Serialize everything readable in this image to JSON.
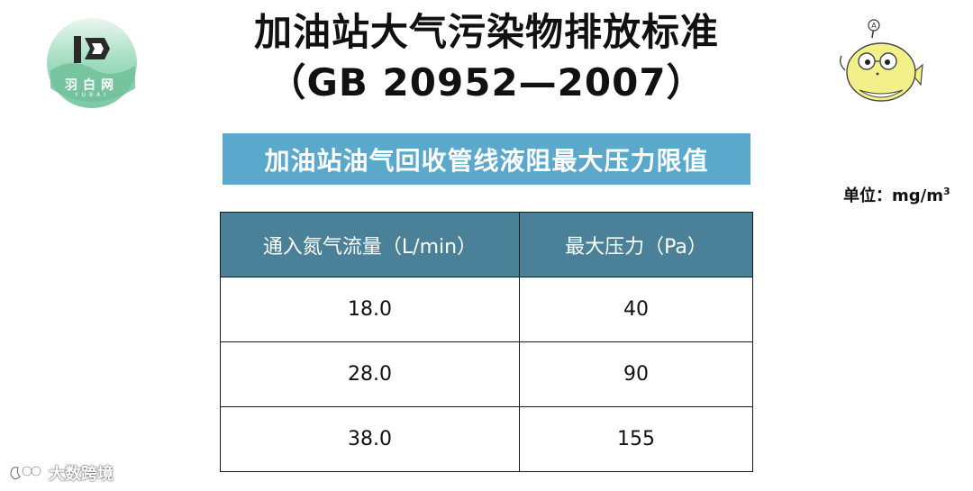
{
  "logo": {
    "text": "羽白网",
    "sub": "YUBAI"
  },
  "title": {
    "line1": "加油站大气污染物排放标准",
    "line2": "（GB 20952—2007）"
  },
  "subtitle": "加油站油气回收管线液阻最大压力限值",
  "unit": {
    "label": "单位：mg/m",
    "sup": "3"
  },
  "table": {
    "headers": [
      "通入氮气流量（L/min）",
      "最大压力（Pa）"
    ],
    "rows": [
      [
        "18.0",
        "40"
      ],
      [
        "28.0",
        "90"
      ],
      [
        "38.0",
        "155"
      ]
    ]
  },
  "watermark": "大数跨境",
  "colors": {
    "subtitle_bar": "#5aa8cc",
    "table_header": "#4a8199",
    "logo_green": "#8fd3b3",
    "mascot_yellow": "#f3f08a"
  }
}
